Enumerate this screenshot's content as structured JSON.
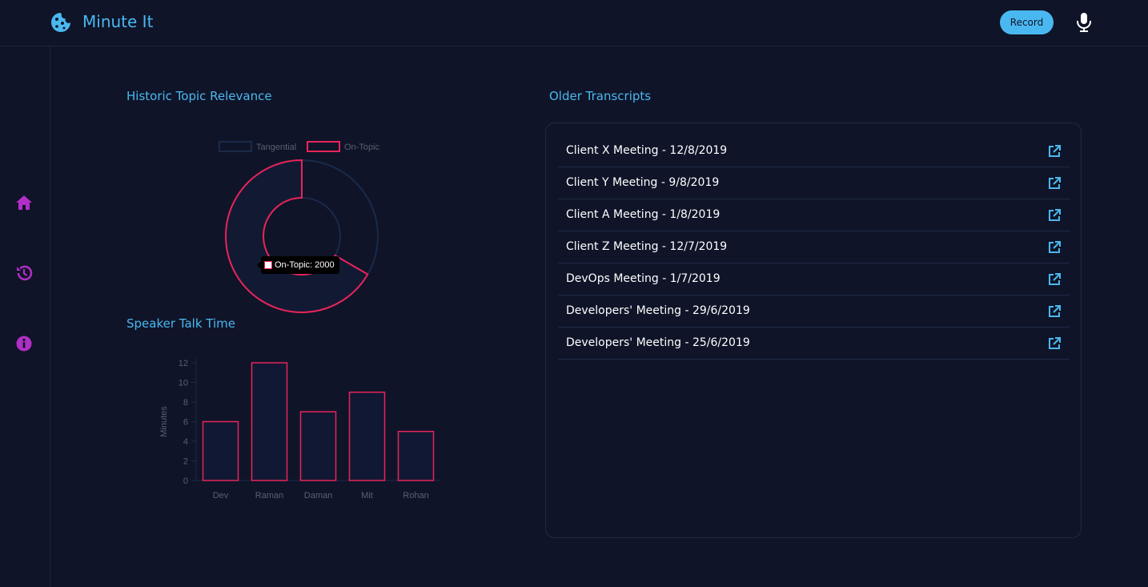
{
  "app": {
    "title": "Minute It",
    "record_label": "Record"
  },
  "sidebar": {
    "items": [
      "home-icon",
      "history-icon",
      "info-icon"
    ],
    "icon_color": "#b02fc5"
  },
  "colors": {
    "background": "#0f1428",
    "accent": "#4ab8f0",
    "series": "#e8245a",
    "tangential": "#1a2a4a"
  },
  "sections": {
    "topic_title": "Historic Topic Relevance",
    "talk_title": "Speaker Talk Time",
    "transcripts_title": "Older Transcripts"
  },
  "tooltip": {
    "text": "On-Topic: 2000"
  },
  "chart_data": [
    {
      "type": "pie",
      "variant": "doughnut",
      "labels": [
        "Tangential",
        "On-Topic"
      ],
      "values": [
        1000,
        2000
      ],
      "legend": "top",
      "title": ""
    },
    {
      "type": "bar",
      "categories": [
        "Dev",
        "Raman",
        "Daman",
        "Mit",
        "Rohan"
      ],
      "values": [
        6,
        12,
        7,
        9,
        5
      ],
      "ylabel": "Minutes",
      "xlabel": "",
      "ylim": [
        0,
        12
      ],
      "yticks": [
        0,
        2,
        4,
        6,
        8,
        10,
        12
      ],
      "title": ""
    }
  ],
  "transcripts": [
    {
      "label": "Client X Meeting - 12/8/2019"
    },
    {
      "label": "Client Y Meeting - 9/8/2019"
    },
    {
      "label": "Client A Meeting - 1/8/2019"
    },
    {
      "label": "Client Z Meeting - 12/7/2019"
    },
    {
      "label": "DevOps Meeting - 1/7/2019"
    },
    {
      "label": "Developers' Meeting - 29/6/2019"
    },
    {
      "label": "Developers' Meeting - 25/6/2019"
    }
  ]
}
